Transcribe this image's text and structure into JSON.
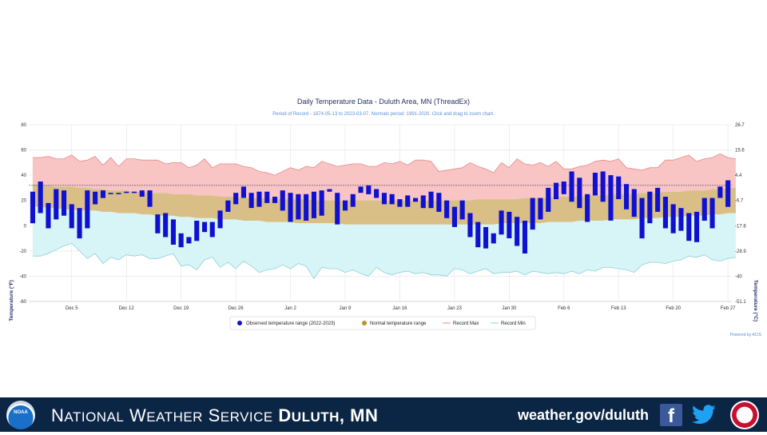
{
  "chart_data": {
    "type": "bar",
    "title": "Daily Temperature Data - Duluth Area, MN (ThreadEx)",
    "subtitle": "Period of Record - 1874-05-13 to 2023-03-07. Normals period: 1991-2020. Click and drag to zoom chart.",
    "ylabel_left": "Temperature (°F)",
    "ylabel_right": "Temperature (°C)",
    "ylim": [
      -60,
      80
    ],
    "yticks_left": [
      "80",
      "60",
      "40",
      "20",
      "0",
      "-20",
      "-40",
      "-60"
    ],
    "yticks_right": [
      "26.7",
      "15.6",
      "4.4",
      "-6.7",
      "-17.8",
      "-28.9",
      "-40",
      "-51.1"
    ],
    "x_start": "2022-11-30",
    "x_end": "2023-02-28",
    "xticks": [
      "Dec 5",
      "Dec 12",
      "Dec 19",
      "Dec 26",
      "Jan 2",
      "Jan 9",
      "Jan 16",
      "Jan 23",
      "Jan 30",
      "Feb 6",
      "Feb 13",
      "Feb 20",
      "Feb 27"
    ],
    "legend_position": "bottom",
    "legend": [
      {
        "label": "Observed temperature range (2022-2023)",
        "color": "#1010d0"
      },
      {
        "label": "Normal temperature range",
        "color": "#b8942e"
      },
      {
        "label": "Record Max",
        "color": "#e88a8a"
      },
      {
        "label": "Record Min",
        "color": "#8fd1d6"
      }
    ],
    "credit": "Powered by ACIS",
    "freezing_line": 32,
    "normal_high": [
      33,
      32,
      32,
      31,
      31,
      31,
      30,
      30,
      29,
      29,
      28,
      28,
      28,
      27,
      27,
      26,
      26,
      26,
      25,
      25,
      25,
      24,
      24,
      24,
      23,
      23,
      23,
      22,
      22,
      22,
      22,
      21,
      21,
      21,
      21,
      21,
      20,
      20,
      20,
      20,
      20,
      20,
      20,
      20,
      20,
      20,
      20,
      20,
      20,
      20,
      20,
      20,
      20,
      20,
      20,
      20,
      20,
      21,
      21,
      21,
      21,
      21,
      21,
      22,
      22,
      22,
      22,
      23,
      23,
      23,
      23,
      24,
      24,
      24,
      25,
      25,
      25,
      25,
      26,
      26,
      26,
      27,
      27,
      27,
      28,
      28,
      28,
      29,
      29,
      30,
      30
    ],
    "normal_low": [
      15,
      15,
      14,
      14,
      13,
      13,
      12,
      12,
      12,
      11,
      11,
      10,
      10,
      10,
      9,
      9,
      8,
      8,
      8,
      7,
      7,
      6,
      6,
      6,
      5,
      5,
      5,
      4,
      4,
      4,
      3,
      3,
      3,
      3,
      2,
      2,
      2,
      2,
      2,
      2,
      1,
      1,
      1,
      1,
      1,
      1,
      1,
      1,
      1,
      1,
      1,
      1,
      1,
      1,
      1,
      1,
      1,
      1,
      1,
      1,
      2,
      2,
      2,
      2,
      2,
      2,
      3,
      3,
      3,
      3,
      4,
      4,
      4,
      4,
      5,
      5,
      5,
      5,
      6,
      6,
      6,
      7,
      7,
      7,
      8,
      8,
      8,
      9,
      9,
      10,
      10
    ],
    "record_max": [
      54,
      54,
      55,
      53,
      53,
      56,
      51,
      52,
      55,
      48,
      54,
      47,
      53,
      53,
      52,
      52,
      52,
      49,
      50,
      50,
      46,
      48,
      53,
      46,
      49,
      49,
      49,
      47,
      46,
      43,
      42,
      40,
      43,
      46,
      44,
      47,
      46,
      51,
      49,
      47,
      48,
      49,
      49,
      47,
      47,
      50,
      49,
      51,
      48,
      52,
      52,
      51,
      43,
      44,
      45,
      46,
      50,
      47,
      45,
      42,
      50,
      46,
      53,
      49,
      48,
      50,
      47,
      51,
      45,
      45,
      47,
      48,
      51,
      52,
      51,
      53,
      46,
      45,
      44,
      46,
      46,
      52,
      52,
      54,
      56,
      51,
      53,
      54,
      57,
      54,
      53
    ],
    "record_min": [
      -24,
      -24,
      -22,
      -19,
      -16,
      -14,
      -20,
      -26,
      -22,
      -30,
      -25,
      -27,
      -23,
      -24,
      -23,
      -26,
      -26,
      -24,
      -22,
      -32,
      -31,
      -35,
      -27,
      -25,
      -33,
      -29,
      -34,
      -28,
      -32,
      -37,
      -35,
      -34,
      -31,
      -34,
      -30,
      -32,
      -42,
      -33,
      -34,
      -34,
      -37,
      -35,
      -38,
      -40,
      -33,
      -37,
      -39,
      -37,
      -36,
      -38,
      -37,
      -39,
      -39,
      -40,
      -34,
      -35,
      -38,
      -36,
      -34,
      -38,
      -37,
      -37,
      -36,
      -39,
      -36,
      -37,
      -38,
      -37,
      -38,
      -36,
      -38,
      -35,
      -36,
      -33,
      -33,
      -34,
      -35,
      -37,
      -31,
      -29,
      -29,
      -30,
      -28,
      -27,
      -24,
      -25,
      -23,
      -27,
      -28,
      -26,
      -25
    ],
    "observed": [
      [
        2,
        27
      ],
      [
        10,
        35
      ],
      [
        -2,
        18
      ],
      [
        5,
        29
      ],
      [
        8,
        28
      ],
      [
        -2,
        17
      ],
      [
        -10,
        14
      ],
      [
        -2,
        28
      ],
      [
        17,
        27
      ],
      [
        22,
        28
      ],
      [
        25,
        26
      ],
      [
        25,
        26
      ],
      [
        26,
        27
      ],
      [
        26,
        27
      ],
      [
        23,
        28
      ],
      [
        15,
        28
      ],
      [
        -6,
        9
      ],
      [
        -9,
        10
      ],
      [
        -15,
        5
      ],
      [
        -17,
        -6
      ],
      [
        -14,
        -9
      ],
      [
        -12,
        4
      ],
      [
        -5,
        3
      ],
      [
        -9,
        3
      ],
      [
        -2,
        12
      ],
      [
        11,
        20
      ],
      [
        17,
        26
      ],
      [
        22,
        31
      ],
      [
        14,
        26
      ],
      [
        15,
        27
      ],
      [
        18,
        27
      ],
      [
        18,
        23
      ],
      [
        12,
        28
      ],
      [
        3,
        26
      ],
      [
        5,
        25
      ],
      [
        4,
        25
      ],
      [
        6,
        27
      ],
      [
        8,
        28
      ],
      [
        27,
        29
      ],
      [
        1,
        26
      ],
      [
        12,
        20
      ],
      [
        15,
        25
      ],
      [
        26,
        31
      ],
      [
        25,
        32
      ],
      [
        22,
        29
      ],
      [
        17,
        26
      ],
      [
        17,
        25
      ],
      [
        15,
        21
      ],
      [
        15,
        24
      ],
      [
        19,
        22
      ],
      [
        14,
        24
      ],
      [
        14,
        27
      ],
      [
        11,
        26
      ],
      [
        6,
        20
      ],
      [
        -1,
        15
      ],
      [
        5,
        20
      ],
      [
        -9,
        10
      ],
      [
        -17,
        3
      ],
      [
        -18,
        -1
      ],
      [
        -14,
        -6
      ],
      [
        -7,
        12
      ],
      [
        -10,
        11
      ],
      [
        -16,
        7
      ],
      [
        -22,
        4
      ],
      [
        -3,
        22
      ],
      [
        5,
        22
      ],
      [
        11,
        30
      ],
      [
        21,
        34
      ],
      [
        25,
        35
      ],
      [
        19,
        43
      ],
      [
        14,
        38
      ],
      [
        3,
        25
      ],
      [
        24,
        42
      ],
      [
        19,
        43
      ],
      [
        4,
        40
      ],
      [
        21,
        39
      ],
      [
        13,
        33
      ],
      [
        7,
        29
      ],
      [
        -10,
        22
      ],
      [
        2,
        27
      ],
      [
        11,
        30
      ],
      [
        -2,
        23
      ],
      [
        -6,
        17
      ],
      [
        -4,
        14
      ],
      [
        -12,
        10
      ],
      [
        -13,
        11
      ],
      [
        4,
        22
      ],
      [
        -2,
        22
      ],
      [
        22,
        31
      ],
      [
        15,
        36
      ]
    ]
  }
}
